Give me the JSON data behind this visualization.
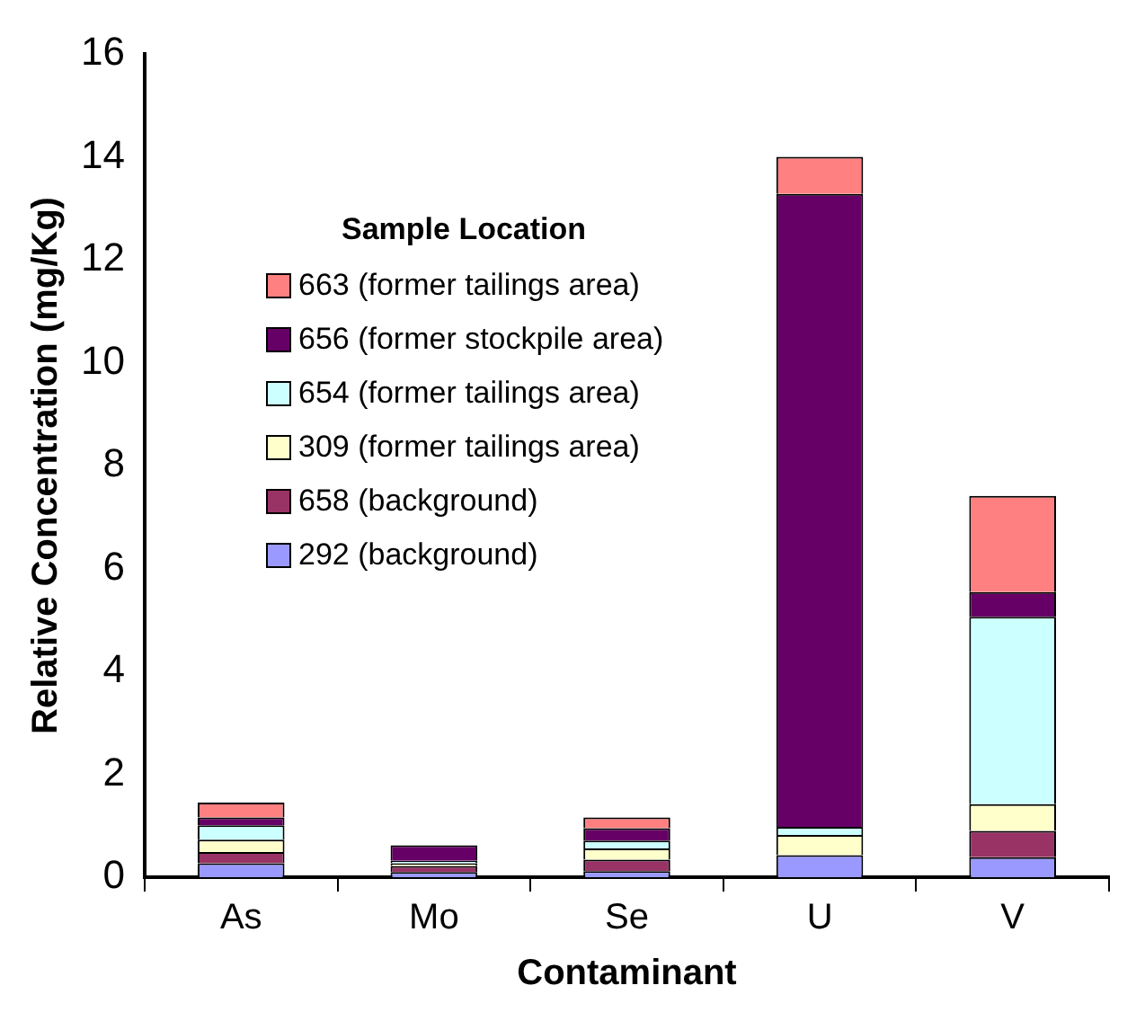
{
  "chart_data": {
    "type": "bar",
    "stacked": true,
    "xlabel": "Contaminant",
    "ylabel": "Relative Concentration (mg/Kg)",
    "legend_title": "Sample Location",
    "legend": "top left",
    "grid": false,
    "categories": [
      "As",
      "Mo",
      "Se",
      "U",
      "V"
    ],
    "ylim": [
      0,
      16
    ],
    "yticks": [
      0,
      2,
      4,
      6,
      8,
      10,
      12,
      14,
      16
    ],
    "series": [
      {
        "name": "292 (background)",
        "color": "#9999ff",
        "values": [
          0.27,
          0.1,
          0.12,
          0.43,
          0.39
        ]
      },
      {
        "name": "658 (background)",
        "color": "#993366",
        "values": [
          0.22,
          0.12,
          0.22,
          0,
          0.51
        ]
      },
      {
        "name": "309 (former tailings area)",
        "color": "#ffffcc",
        "values": [
          0.24,
          0.05,
          0.22,
          0.39,
          0.52
        ]
      },
      {
        "name": "654 (former tailings area)",
        "color": "#ccffff",
        "values": [
          0.28,
          0.05,
          0.15,
          0.16,
          3.64
        ]
      },
      {
        "name": "656 (former stockpile area)",
        "color": "#660066",
        "values": [
          0.15,
          0.3,
          0.24,
          12.3,
          0.48
        ]
      },
      {
        "name": "663 (former tailings area)",
        "color": "#ff8080",
        "values": [
          0.29,
          null,
          0.21,
          0.72,
          1.87
        ]
      }
    ]
  }
}
